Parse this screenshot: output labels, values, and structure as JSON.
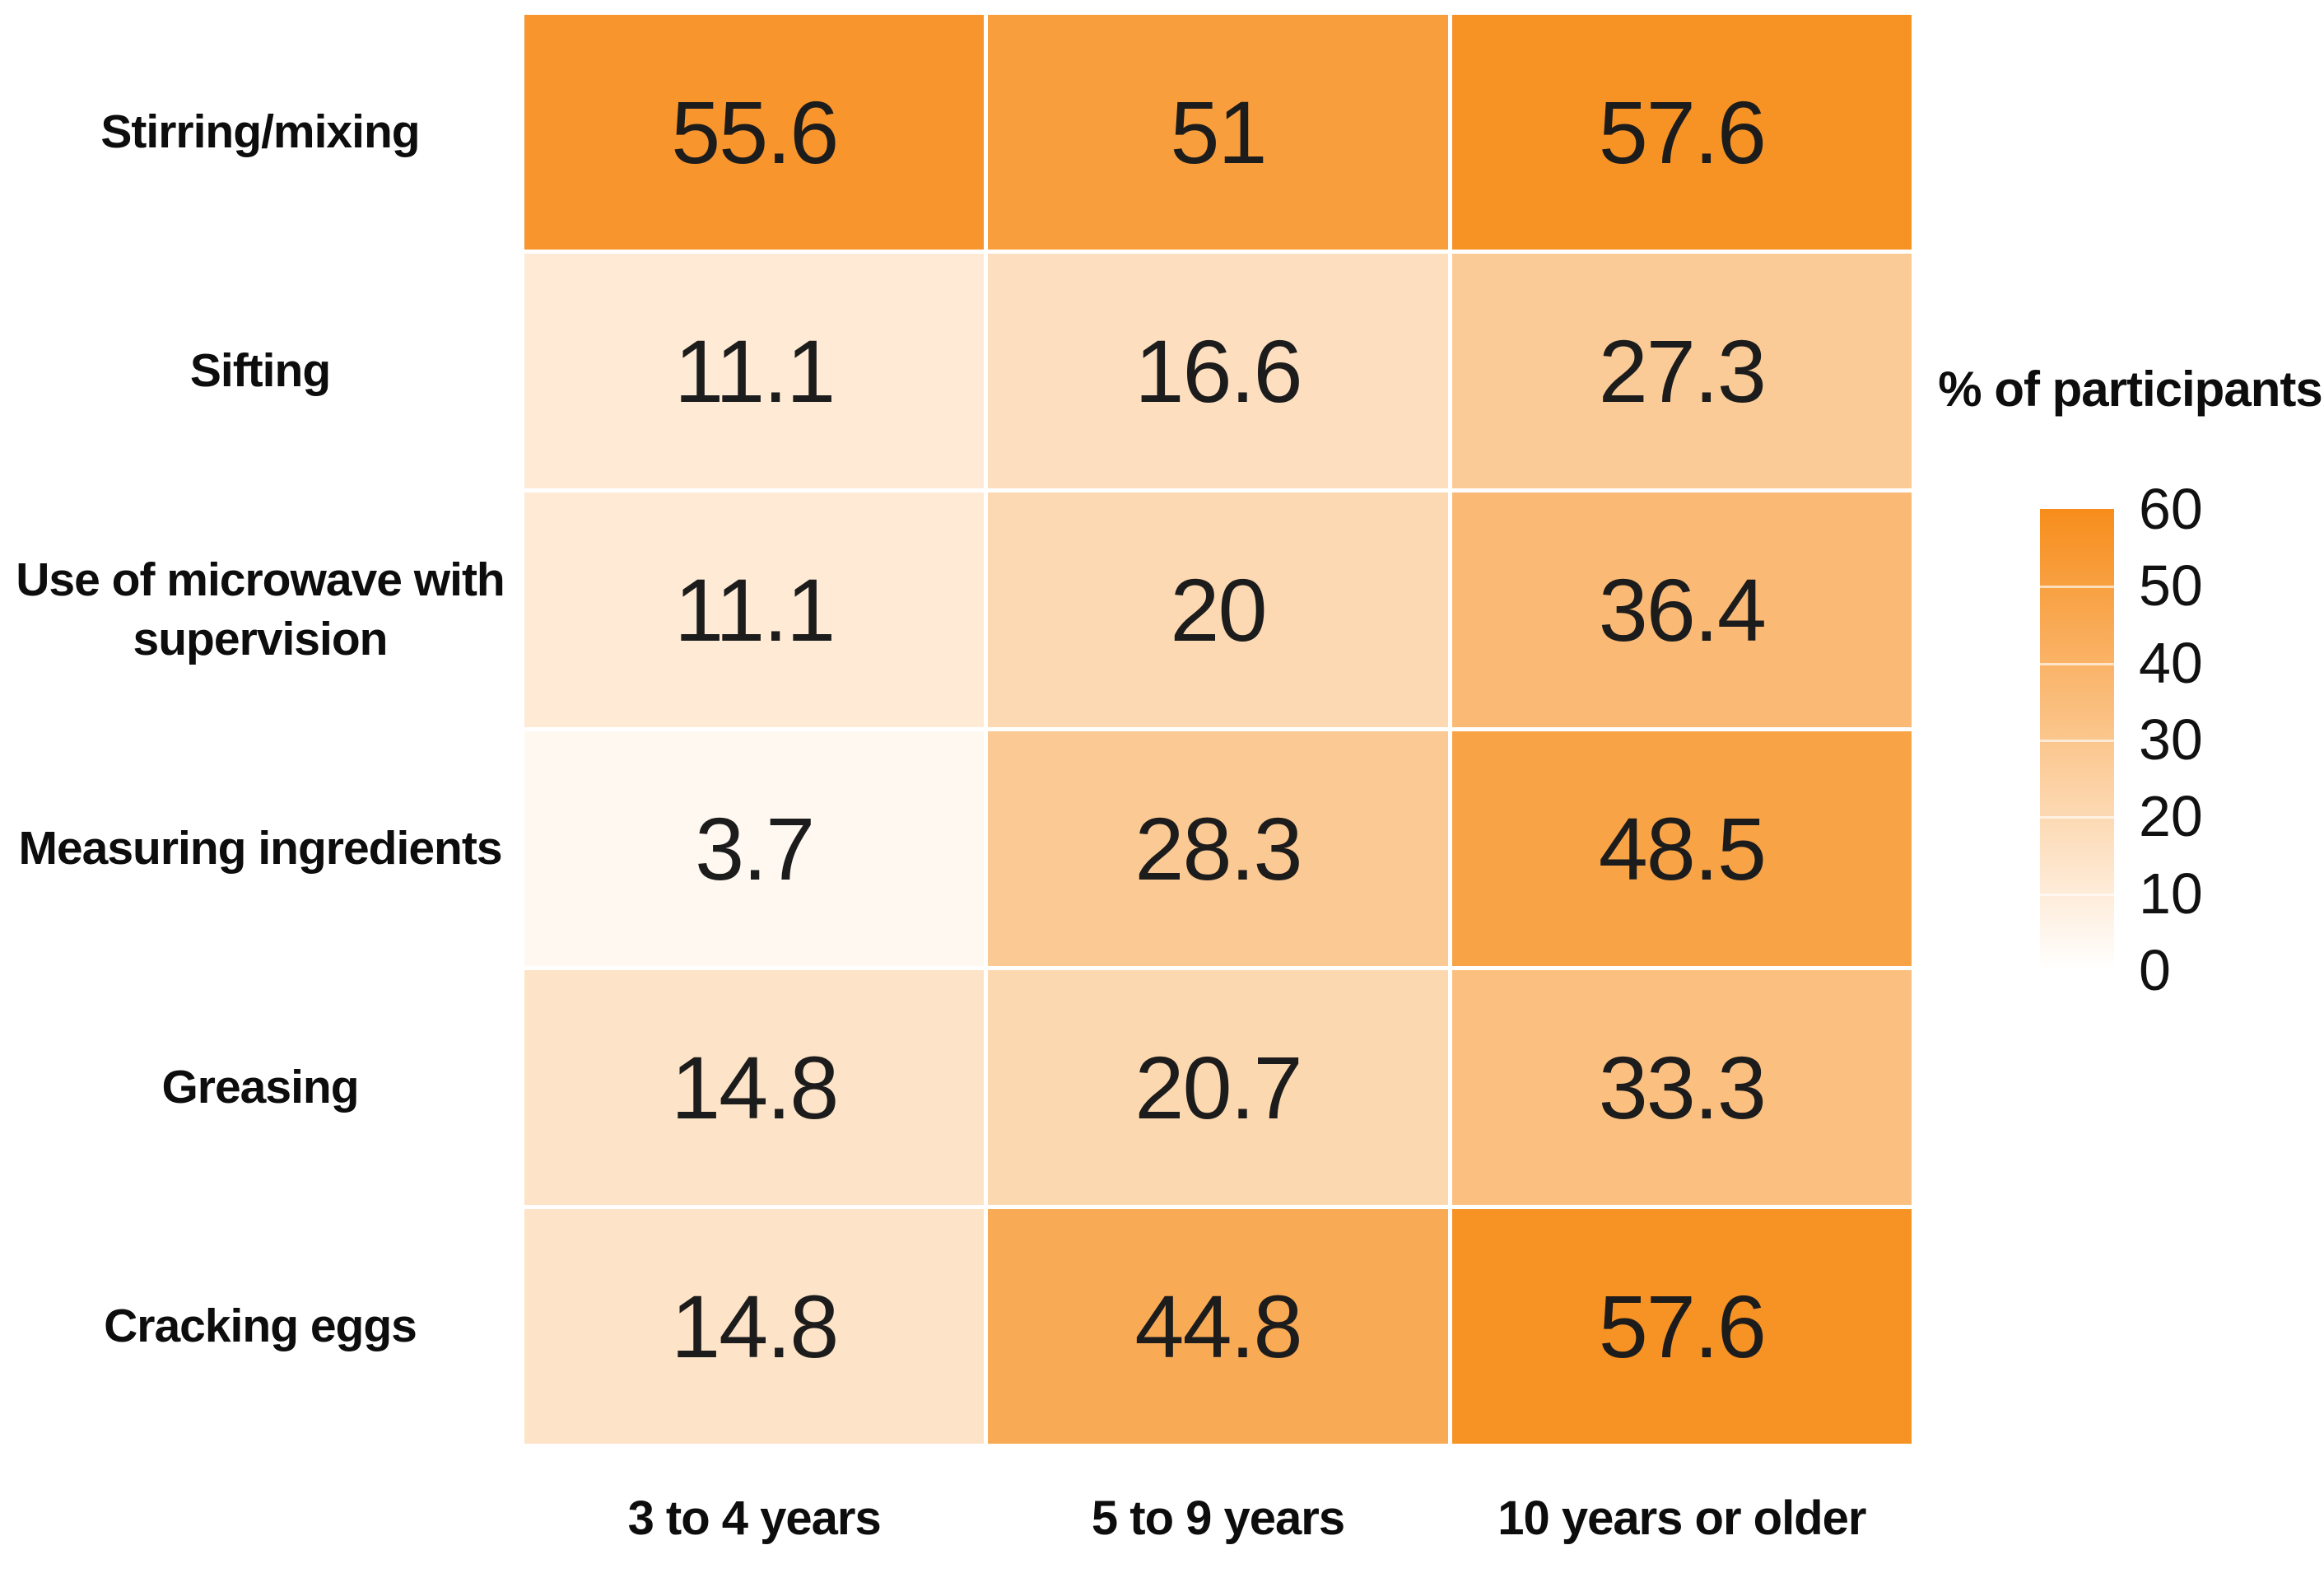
{
  "chart_data": {
    "type": "heatmap",
    "legend_title": "% of participants",
    "categories_x": [
      "3 to 4 years",
      "5 to 9 years",
      "10 years or older"
    ],
    "categories_y": [
      "Stirring/mixing",
      "Sifting",
      "Use of microwave with supervision",
      "Measuring ingredients",
      "Greasing",
      "Cracking eggs"
    ],
    "values": [
      [
        55.6,
        51,
        57.6
      ],
      [
        11.1,
        16.6,
        27.3
      ],
      [
        11.1,
        20,
        36.4
      ],
      [
        3.7,
        28.3,
        48.5
      ],
      [
        14.8,
        20.7,
        33.3
      ],
      [
        14.8,
        44.8,
        57.6
      ]
    ],
    "colorbar_ticks": [
      60,
      50,
      40,
      30,
      20,
      10,
      0
    ],
    "scale_min": 0,
    "scale_max": 60,
    "color_min": "#FFFFFF",
    "color_max": "#F78D1B",
    "cell_value_color": "#1C1C1C",
    "legend_position": "right",
    "grid_gap_color": "#FFFFFF"
  }
}
